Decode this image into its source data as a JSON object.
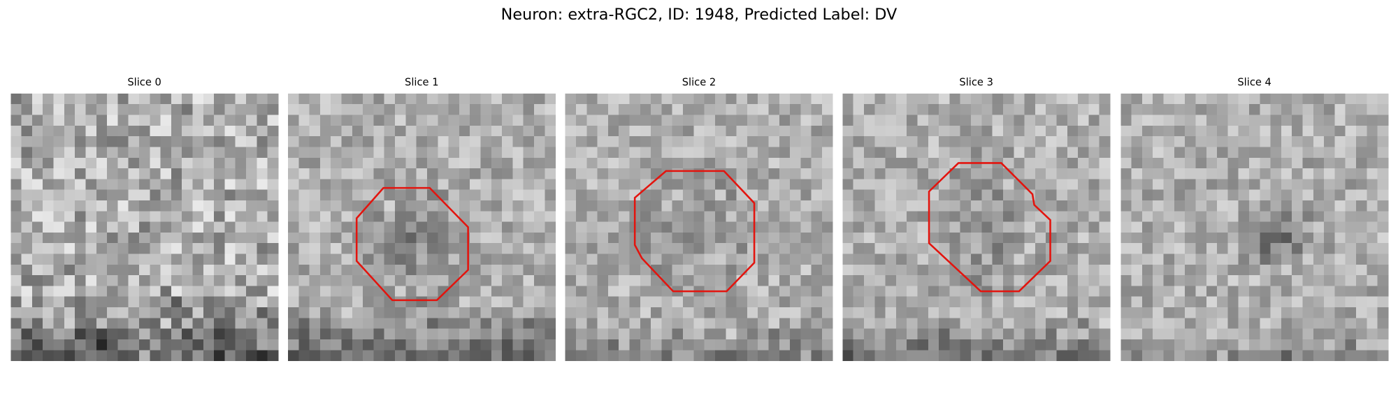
{
  "title": "Neuron: extra-RGC2, ID: 1948, Predicted Label: DV",
  "panels": [
    {
      "title": "Slice 0"
    },
    {
      "title": "Slice 1"
    },
    {
      "title": "Slice 2"
    },
    {
      "title": "Slice 3"
    },
    {
      "title": "Slice 4"
    }
  ]
}
